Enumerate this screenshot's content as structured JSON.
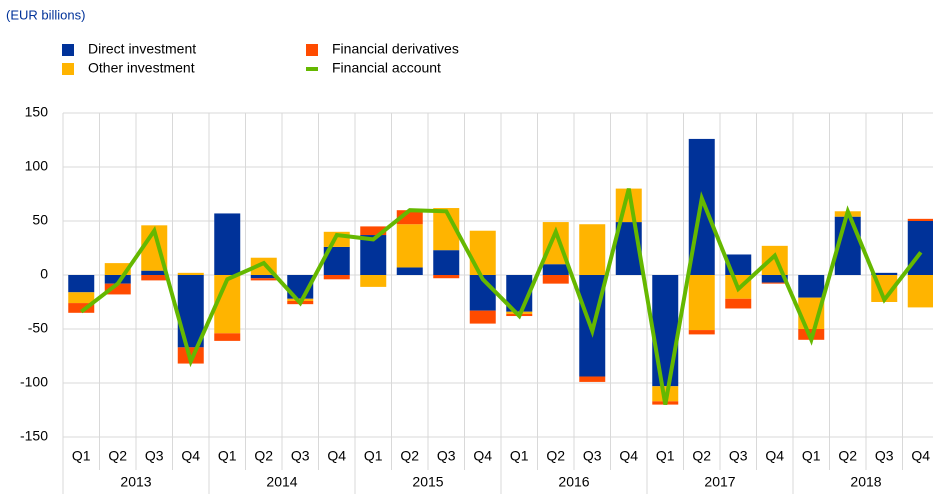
{
  "chart_data": {
    "type": "bar",
    "stacked": true,
    "subtitle": "(EUR billions)",
    "categories": [
      "Q1",
      "Q2",
      "Q3",
      "Q4",
      "Q1",
      "Q2",
      "Q3",
      "Q4",
      "Q1",
      "Q2",
      "Q3",
      "Q4",
      "Q1",
      "Q2",
      "Q3",
      "Q4",
      "Q1",
      "Q2",
      "Q3",
      "Q4",
      "Q1",
      "Q2",
      "Q3",
      "Q4"
    ],
    "years": [
      "2013",
      "2014",
      "2015",
      "2016",
      "2017",
      "2018"
    ],
    "series": [
      {
        "name": "Direct investment",
        "type": "bar",
        "color": "#003299",
        "values": [
          -16,
          -8,
          4,
          -67,
          57,
          -3,
          -22,
          26,
          37,
          7,
          23,
          -33,
          -34,
          10,
          -94,
          49,
          -103,
          126,
          19,
          -7,
          -21,
          54,
          2,
          50
        ]
      },
      {
        "name": "Other investment",
        "type": "bar",
        "color": "#ffb400",
        "values": [
          -10,
          11,
          42,
          2,
          -54,
          16,
          -2,
          14,
          -11,
          40,
          39,
          41,
          -2,
          39,
          47,
          31,
          -14,
          -51,
          -22,
          27,
          -29,
          5,
          -25,
          -30
        ]
      },
      {
        "name": "Financial derivatives",
        "type": "bar",
        "color": "#ff4b00",
        "values": [
          -9,
          -10,
          -5,
          -15,
          -7,
          -2,
          -3,
          -4,
          8,
          13,
          -3,
          -12,
          -2,
          -8,
          -5,
          0,
          -3,
          -4,
          -9,
          -1,
          -10,
          0,
          0,
          2
        ]
      },
      {
        "name": "Financial account",
        "type": "line",
        "color": "#65b800",
        "values": [
          -34,
          -8,
          41,
          -80,
          -4,
          11,
          -26,
          37,
          33,
          60,
          59,
          -4,
          -38,
          40,
          -52,
          80,
          -120,
          71,
          -13,
          18,
          -60,
          59,
          -23,
          21
        ]
      }
    ],
    "ylim": [
      -150,
      150
    ],
    "yticks": [
      -150,
      -100,
      -50,
      0,
      50,
      100,
      150
    ],
    "grid": true
  }
}
